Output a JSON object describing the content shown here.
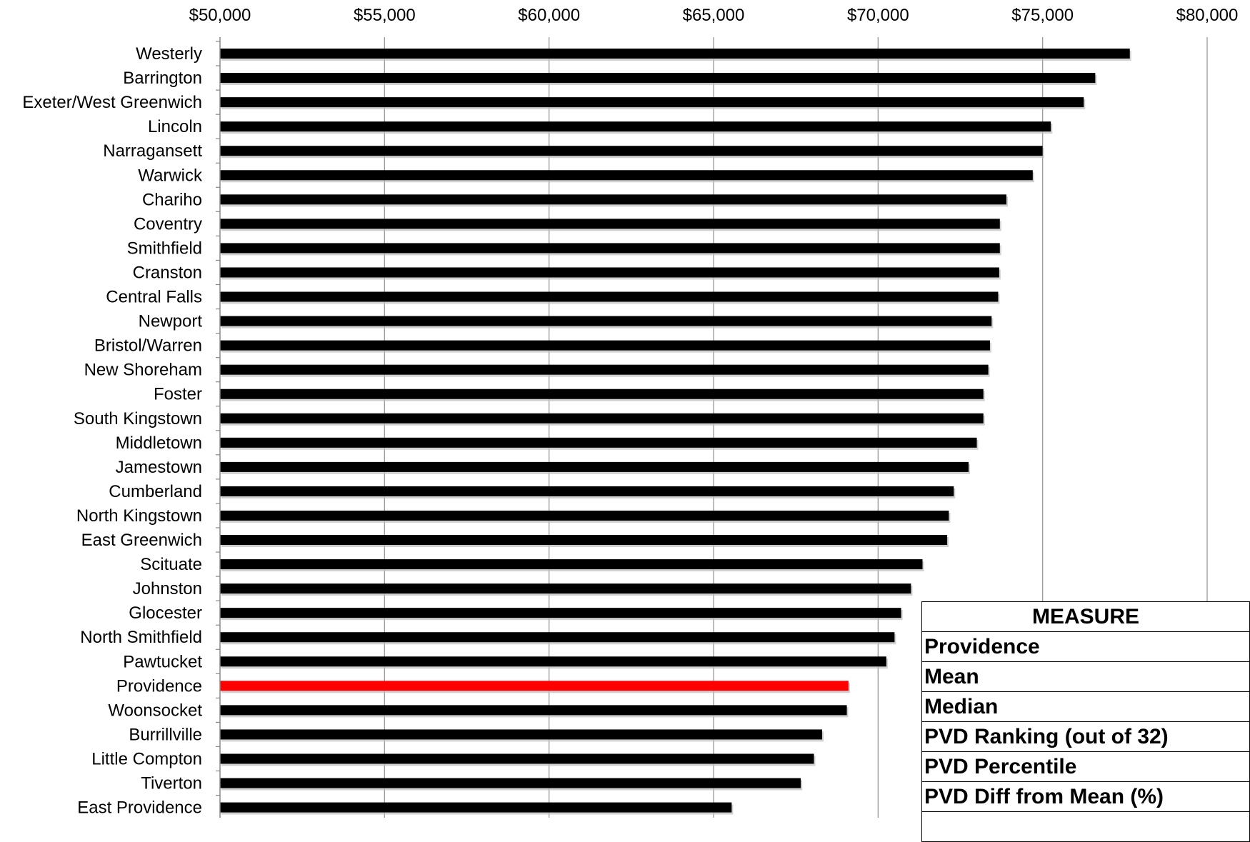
{
  "chart_data": {
    "type": "bar",
    "orientation": "horizontal",
    "xlim": [
      50000,
      80000
    ],
    "x_ticks": [
      "$50,000",
      "$55,000",
      "$60,000",
      "$65,000",
      "$70,000",
      "$75,000",
      "$80,000"
    ],
    "x_tick_values": [
      50000,
      55000,
      60000,
      65000,
      70000,
      75000,
      80000
    ],
    "grid": "vertical",
    "categories": [
      "Westerly",
      "Barrington",
      "Exeter/West Greenwich",
      "Lincoln",
      "Narragansett",
      "Warwick",
      "Chariho",
      "Coventry",
      "Smithfield",
      "Cranston",
      "Central Falls",
      "Newport",
      "Bristol/Warren",
      "New Shoreham",
      "Foster",
      "South Kingstown",
      "Middletown",
      "Jamestown",
      "Cumberland",
      "North Kingstown",
      "East Greenwich",
      "Scituate",
      "Johnston",
      "Glocester",
      "North Smithfield",
      "Pawtucket",
      "Providence",
      "Woonsocket",
      "Burrillville",
      "Little Compton",
      "Tiverton",
      "East Providence"
    ],
    "values": [
      77650,
      76600,
      76250,
      75250,
      75000,
      74700,
      73900,
      73700,
      73700,
      73680,
      73650,
      73450,
      73400,
      73350,
      73200,
      73200,
      73000,
      72750,
      72300,
      72150,
      72100,
      71350,
      71000,
      70700,
      70500,
      70250,
      69100,
      69050,
      68300,
      68050,
      67650,
      65550
    ],
    "colors": {
      "default": "#000000",
      "highlight": "#ff0000"
    },
    "highlight": "Providence"
  },
  "measure_table": {
    "header": "MEASURE",
    "rows": [
      "Providence",
      "Mean",
      "Median",
      "PVD Ranking (out of 32)",
      "PVD Percentile",
      "PVD Diff from Mean (%)"
    ]
  }
}
